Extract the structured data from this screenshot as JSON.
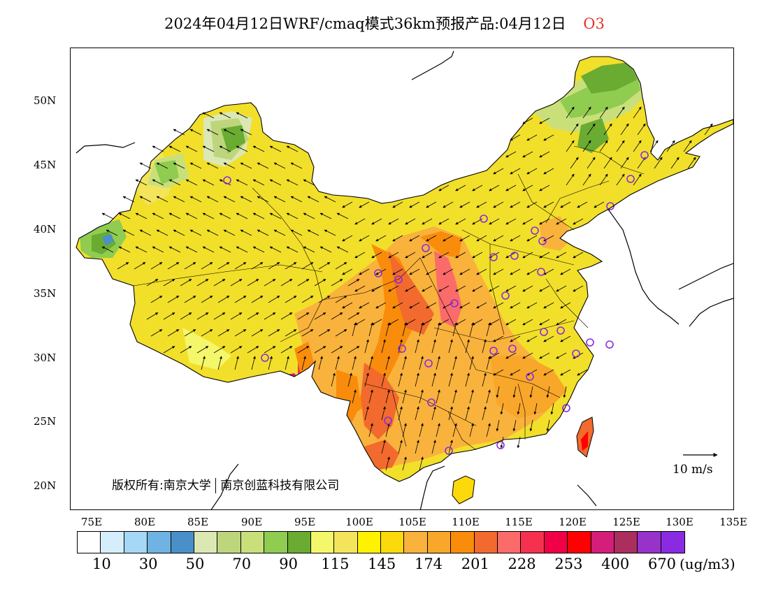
{
  "title": {
    "text": "2024年04月12日WRF/cmaq模式36km预报产品:04月12日",
    "tag": "O3",
    "tag_color": "#e8302a"
  },
  "map": {
    "lat_labels": [
      "50N",
      "45N",
      "40N",
      "35N",
      "30N",
      "25N",
      "20N"
    ],
    "lon_labels": [
      "75E",
      "80E",
      "85E",
      "90E",
      "95E",
      "100E",
      "105E",
      "110E",
      "115E",
      "120E",
      "125E",
      "130E",
      "135E"
    ],
    "copyright": {
      "owner_1": "版权所有:南京大学",
      "owner_2": "南京创蓝科技有限公司"
    },
    "wind_scale_label": "10  m/s",
    "station_marker_color": "#8a2be2",
    "land_base_color": "#f2df2a",
    "ocean_color": "#ffffff"
  },
  "legend": {
    "colors": [
      "#ffffff",
      "#d6eefb",
      "#a5d8f5",
      "#6fb3e2",
      "#4a90c8",
      "#dce8b4",
      "#bdd67c",
      "#c9e07a",
      "#8fcc50",
      "#6aab32",
      "#f5f76a",
      "#f3e45c",
      "#fff200",
      "#fcd90a",
      "#f9b23c",
      "#f9a72a",
      "#f98c0b",
      "#f26a2d",
      "#fb6b6a",
      "#f6304f",
      "#f00046",
      "#ff0000",
      "#d41e7a",
      "#aa2f5e",
      "#9733c9",
      "#8a2be2"
    ],
    "labels": [
      "10",
      "30",
      "50",
      "70",
      "90",
      "115",
      "145",
      "174",
      "201",
      "228",
      "253",
      "400",
      "670"
    ],
    "unit": "(ug/m3)"
  }
}
